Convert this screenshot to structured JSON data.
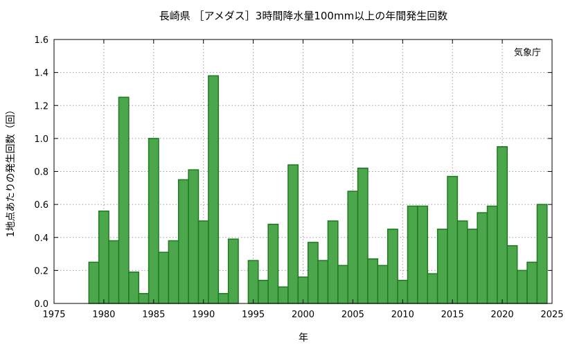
{
  "chart_data": {
    "type": "bar",
    "title": "長崎県 ［アメダス］3時間降水量100mm以上の年間発生回数",
    "xlabel": "年",
    "ylabel": "1地点あたりの発生回数（回）",
    "annotation": "気象庁",
    "xlim": [
      1975,
      2025
    ],
    "ylim": [
      0,
      1.6
    ],
    "xticks": [
      1975,
      1980,
      1985,
      1990,
      1995,
      2000,
      2005,
      2010,
      2015,
      2020,
      2025
    ],
    "yticks": [
      "0.0",
      "0.2",
      "0.4",
      "0.6",
      "0.8",
      "1.0",
      "1.2",
      "1.4",
      "1.6"
    ],
    "grid": true,
    "bar_color": "#4ca64c",
    "bar_edge_color": "#1e7a1e",
    "years": [
      1979,
      1980,
      1981,
      1982,
      1983,
      1984,
      1985,
      1986,
      1987,
      1988,
      1989,
      1990,
      1991,
      1992,
      1993,
      1994,
      1995,
      1996,
      1997,
      1998,
      1999,
      2000,
      2001,
      2002,
      2003,
      2004,
      2005,
      2006,
      2007,
      2008,
      2009,
      2010,
      2011,
      2012,
      2013,
      2014,
      2015,
      2016,
      2017,
      2018,
      2019,
      2020,
      2021,
      2022,
      2023,
      2024
    ],
    "values": [
      0.25,
      0.56,
      0.38,
      1.25,
      0.19,
      0.06,
      1.0,
      0.31,
      0.38,
      0.75,
      0.81,
      0.5,
      1.38,
      0.06,
      0.39,
      0.0,
      0.26,
      0.14,
      0.48,
      0.1,
      0.84,
      0.16,
      0.37,
      0.26,
      0.5,
      0.23,
      0.68,
      0.82,
      0.27,
      0.23,
      0.45,
      0.14,
      0.59,
      0.59,
      0.18,
      0.45,
      0.77,
      0.5,
      0.45,
      0.55,
      0.59,
      0.95,
      0.35,
      0.2,
      0.25,
      0.6
    ]
  }
}
